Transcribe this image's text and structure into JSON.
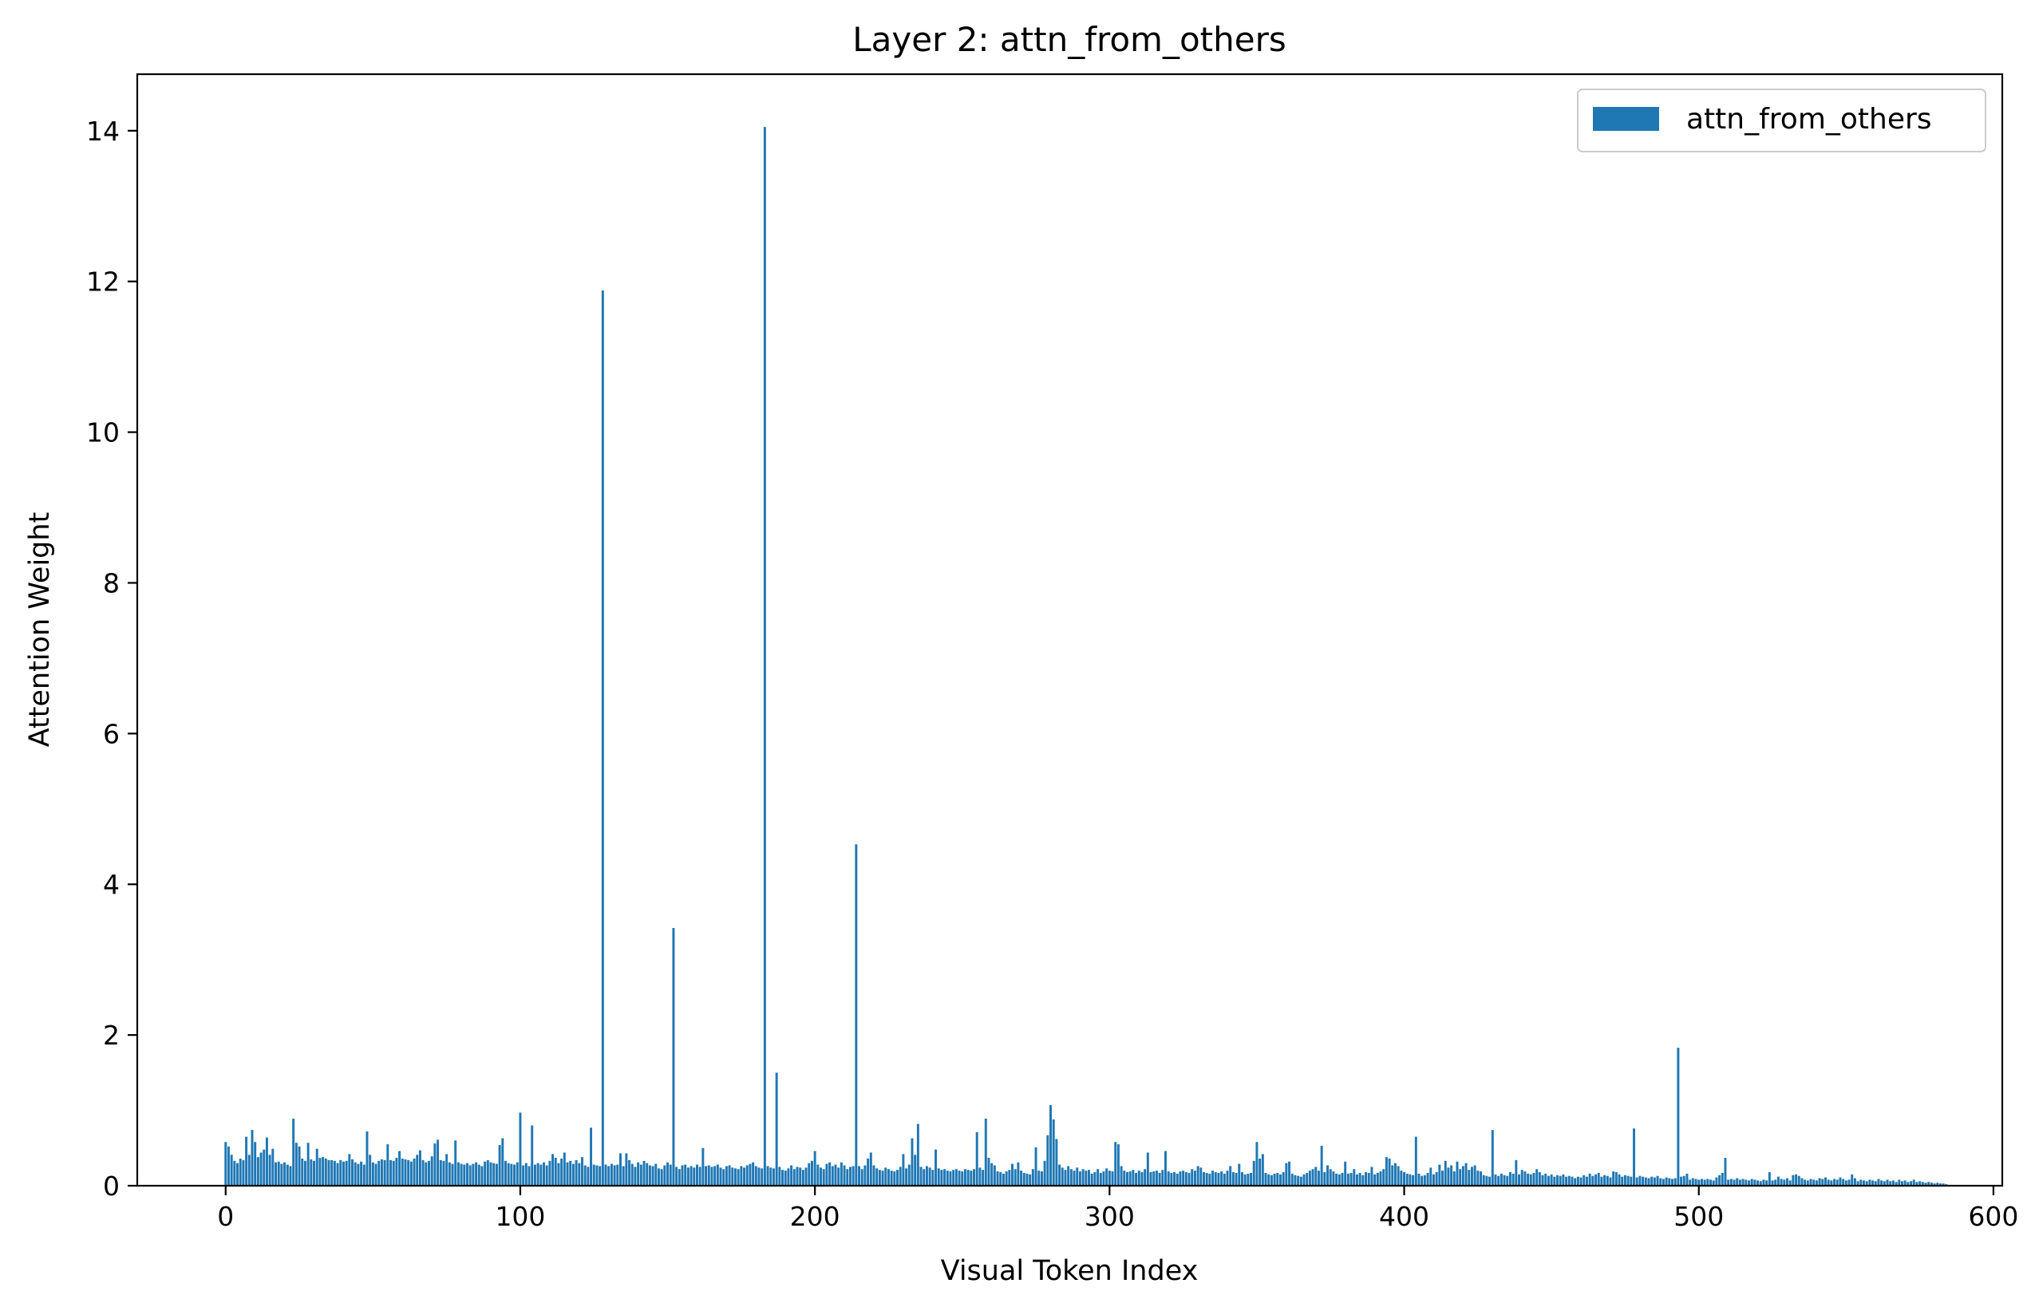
{
  "chart_data": {
    "type": "bar",
    "title": "Layer 2: attn_from_others",
    "xlabel": "Visual Token Index",
    "ylabel": "Attention Weight",
    "xlim": [
      -30,
      603
    ],
    "ylim": [
      0,
      14.75
    ],
    "xticks": [
      0,
      100,
      200,
      300,
      400,
      500,
      600
    ],
    "yticks": [
      0,
      2,
      4,
      6,
      8,
      10,
      12,
      14
    ],
    "legend": {
      "placement": "top-right"
    },
    "grid": false,
    "series": [
      {
        "name": "attn_from_others",
        "color": "#1f77b4",
        "x_start": 0,
        "values": [
          0.58,
          0.52,
          0.41,
          0.33,
          0.3,
          0.36,
          0.34,
          0.65,
          0.41,
          0.74,
          0.58,
          0.38,
          0.44,
          0.48,
          0.64,
          0.41,
          0.49,
          0.31,
          0.32,
          0.29,
          0.31,
          0.28,
          0.26,
          0.89,
          0.57,
          0.52,
          0.36,
          0.33,
          0.57,
          0.35,
          0.33,
          0.49,
          0.37,
          0.38,
          0.36,
          0.34,
          0.34,
          0.33,
          0.3,
          0.34,
          0.32,
          0.33,
          0.42,
          0.35,
          0.31,
          0.29,
          0.32,
          0.28,
          0.72,
          0.41,
          0.31,
          0.29,
          0.33,
          0.35,
          0.34,
          0.55,
          0.34,
          0.33,
          0.37,
          0.46,
          0.36,
          0.35,
          0.34,
          0.32,
          0.36,
          0.41,
          0.47,
          0.34,
          0.31,
          0.33,
          0.39,
          0.56,
          0.61,
          0.34,
          0.33,
          0.42,
          0.31,
          0.29,
          0.6,
          0.31,
          0.29,
          0.28,
          0.3,
          0.27,
          0.29,
          0.31,
          0.28,
          0.26,
          0.32,
          0.34,
          0.31,
          0.3,
          0.29,
          0.54,
          0.63,
          0.33,
          0.3,
          0.29,
          0.28,
          0.31,
          0.97,
          0.27,
          0.3,
          0.26,
          0.8,
          0.28,
          0.3,
          0.28,
          0.31,
          0.27,
          0.33,
          0.42,
          0.37,
          0.3,
          0.36,
          0.44,
          0.31,
          0.33,
          0.29,
          0.34,
          0.3,
          0.38,
          0.27,
          0.25,
          0.77,
          0.28,
          0.27,
          0.26,
          11.88,
          0.28,
          0.26,
          0.29,
          0.27,
          0.28,
          0.43,
          0.26,
          0.43,
          0.34,
          0.29,
          0.25,
          0.31,
          0.28,
          0.33,
          0.3,
          0.27,
          0.26,
          0.29,
          0.23,
          0.22,
          0.27,
          0.31,
          0.28,
          3.42,
          0.25,
          0.22,
          0.27,
          0.28,
          0.24,
          0.26,
          0.24,
          0.28,
          0.25,
          0.5,
          0.26,
          0.27,
          0.25,
          0.26,
          0.28,
          0.24,
          0.22,
          0.26,
          0.27,
          0.24,
          0.23,
          0.22,
          0.26,
          0.24,
          0.27,
          0.29,
          0.31,
          0.26,
          0.24,
          0.23,
          14.05,
          0.26,
          0.24,
          0.23,
          1.5,
          0.25,
          0.21,
          0.2,
          0.23,
          0.27,
          0.22,
          0.25,
          0.24,
          0.21,
          0.24,
          0.3,
          0.33,
          0.46,
          0.28,
          0.24,
          0.22,
          0.29,
          0.31,
          0.26,
          0.28,
          0.24,
          0.31,
          0.27,
          0.22,
          0.25,
          0.26,
          4.53,
          0.26,
          0.22,
          0.27,
          0.36,
          0.44,
          0.27,
          0.23,
          0.21,
          0.2,
          0.24,
          0.22,
          0.2,
          0.19,
          0.21,
          0.25,
          0.42,
          0.23,
          0.28,
          0.63,
          0.41,
          0.82,
          0.25,
          0.22,
          0.26,
          0.24,
          0.21,
          0.48,
          0.23,
          0.21,
          0.22,
          0.2,
          0.19,
          0.21,
          0.22,
          0.2,
          0.19,
          0.22,
          0.21,
          0.2,
          0.22,
          0.71,
          0.24,
          0.21,
          0.89,
          0.37,
          0.3,
          0.27,
          0.19,
          0.18,
          0.16,
          0.19,
          0.21,
          0.29,
          0.22,
          0.31,
          0.2,
          0.17,
          0.16,
          0.15,
          0.22,
          0.51,
          0.2,
          0.19,
          0.33,
          0.67,
          1.07,
          0.88,
          0.62,
          0.28,
          0.24,
          0.21,
          0.26,
          0.22,
          0.2,
          0.24,
          0.19,
          0.22,
          0.2,
          0.21,
          0.16,
          0.18,
          0.22,
          0.17,
          0.19,
          0.23,
          0.2,
          0.19,
          0.58,
          0.55,
          0.26,
          0.2,
          0.18,
          0.19,
          0.21,
          0.17,
          0.2,
          0.18,
          0.22,
          0.44,
          0.18,
          0.19,
          0.2,
          0.17,
          0.21,
          0.46,
          0.19,
          0.17,
          0.18,
          0.16,
          0.19,
          0.2,
          0.18,
          0.17,
          0.22,
          0.2,
          0.26,
          0.24,
          0.18,
          0.17,
          0.16,
          0.2,
          0.18,
          0.17,
          0.19,
          0.16,
          0.2,
          0.26,
          0.18,
          0.17,
          0.29,
          0.18,
          0.15,
          0.16,
          0.17,
          0.33,
          0.58,
          0.36,
          0.42,
          0.17,
          0.15,
          0.14,
          0.16,
          0.17,
          0.15,
          0.18,
          0.3,
          0.32,
          0.16,
          0.14,
          0.13,
          0.12,
          0.15,
          0.17,
          0.2,
          0.22,
          0.25,
          0.2,
          0.53,
          0.18,
          0.27,
          0.22,
          0.19,
          0.16,
          0.15,
          0.17,
          0.32,
          0.16,
          0.17,
          0.22,
          0.15,
          0.17,
          0.14,
          0.18,
          0.17,
          0.25,
          0.15,
          0.17,
          0.19,
          0.22,
          0.38,
          0.36,
          0.27,
          0.3,
          0.26,
          0.2,
          0.18,
          0.16,
          0.15,
          0.14,
          0.65,
          0.16,
          0.13,
          0.14,
          0.17,
          0.24,
          0.15,
          0.18,
          0.28,
          0.2,
          0.33,
          0.24,
          0.27,
          0.19,
          0.32,
          0.22,
          0.26,
          0.3,
          0.21,
          0.25,
          0.27,
          0.2,
          0.19,
          0.14,
          0.13,
          0.12,
          0.74,
          0.15,
          0.13,
          0.16,
          0.14,
          0.13,
          0.18,
          0.16,
          0.34,
          0.15,
          0.21,
          0.19,
          0.16,
          0.15,
          0.17,
          0.22,
          0.18,
          0.14,
          0.16,
          0.13,
          0.15,
          0.12,
          0.14,
          0.13,
          0.15,
          0.12,
          0.13,
          0.12,
          0.1,
          0.12,
          0.11,
          0.14,
          0.12,
          0.16,
          0.13,
          0.15,
          0.17,
          0.12,
          0.14,
          0.13,
          0.11,
          0.19,
          0.18,
          0.15,
          0.12,
          0.14,
          0.13,
          0.12,
          0.76,
          0.11,
          0.13,
          0.12,
          0.11,
          0.1,
          0.12,
          0.11,
          0.13,
          0.1,
          0.09,
          0.11,
          0.1,
          0.09,
          0.1,
          1.83,
          0.12,
          0.13,
          0.16,
          0.08,
          0.1,
          0.09,
          0.08,
          0.09,
          0.08,
          0.09,
          0.08,
          0.07,
          0.11,
          0.14,
          0.17,
          0.37,
          0.08,
          0.09,
          0.08,
          0.1,
          0.08,
          0.09,
          0.08,
          0.07,
          0.09,
          0.08,
          0.07,
          0.06,
          0.08,
          0.07,
          0.18,
          0.07,
          0.08,
          0.12,
          0.09,
          0.08,
          0.1,
          0.07,
          0.14,
          0.15,
          0.13,
          0.1,
          0.08,
          0.07,
          0.09,
          0.08,
          0.07,
          0.1,
          0.09,
          0.11,
          0.08,
          0.07,
          0.09,
          0.08,
          0.11,
          0.09,
          0.07,
          0.08,
          0.15,
          0.1,
          0.06,
          0.08,
          0.07,
          0.06,
          0.08,
          0.07,
          0.06,
          0.09,
          0.07,
          0.06,
          0.08,
          0.06,
          0.07,
          0.05,
          0.08,
          0.06,
          0.07,
          0.05,
          0.06,
          0.08,
          0.05,
          0.06,
          0.05,
          0.04,
          0.05,
          0.04,
          0.03,
          0.04,
          0.03,
          0.03,
          0.02
        ]
      }
    ]
  }
}
